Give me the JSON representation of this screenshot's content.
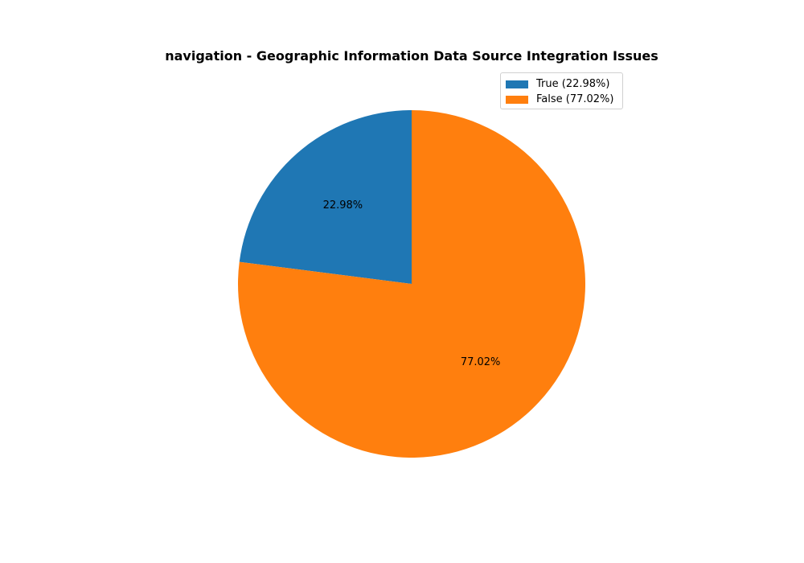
{
  "chart_data": {
    "type": "pie",
    "title": "navigation - Geographic Information Data Source Integration Issues",
    "slices": [
      {
        "label": "True",
        "value": 22.98,
        "pct_label": "22.98%",
        "legend": "True (22.98%)",
        "color": "#1f77b4"
      },
      {
        "label": "False",
        "value": 77.02,
        "pct_label": "77.02%",
        "legend": "False (77.02%)",
        "color": "#ff7f0e"
      }
    ],
    "start_angle_deg": 90,
    "direction": "counterclockwise",
    "legend_position": "top-right"
  }
}
